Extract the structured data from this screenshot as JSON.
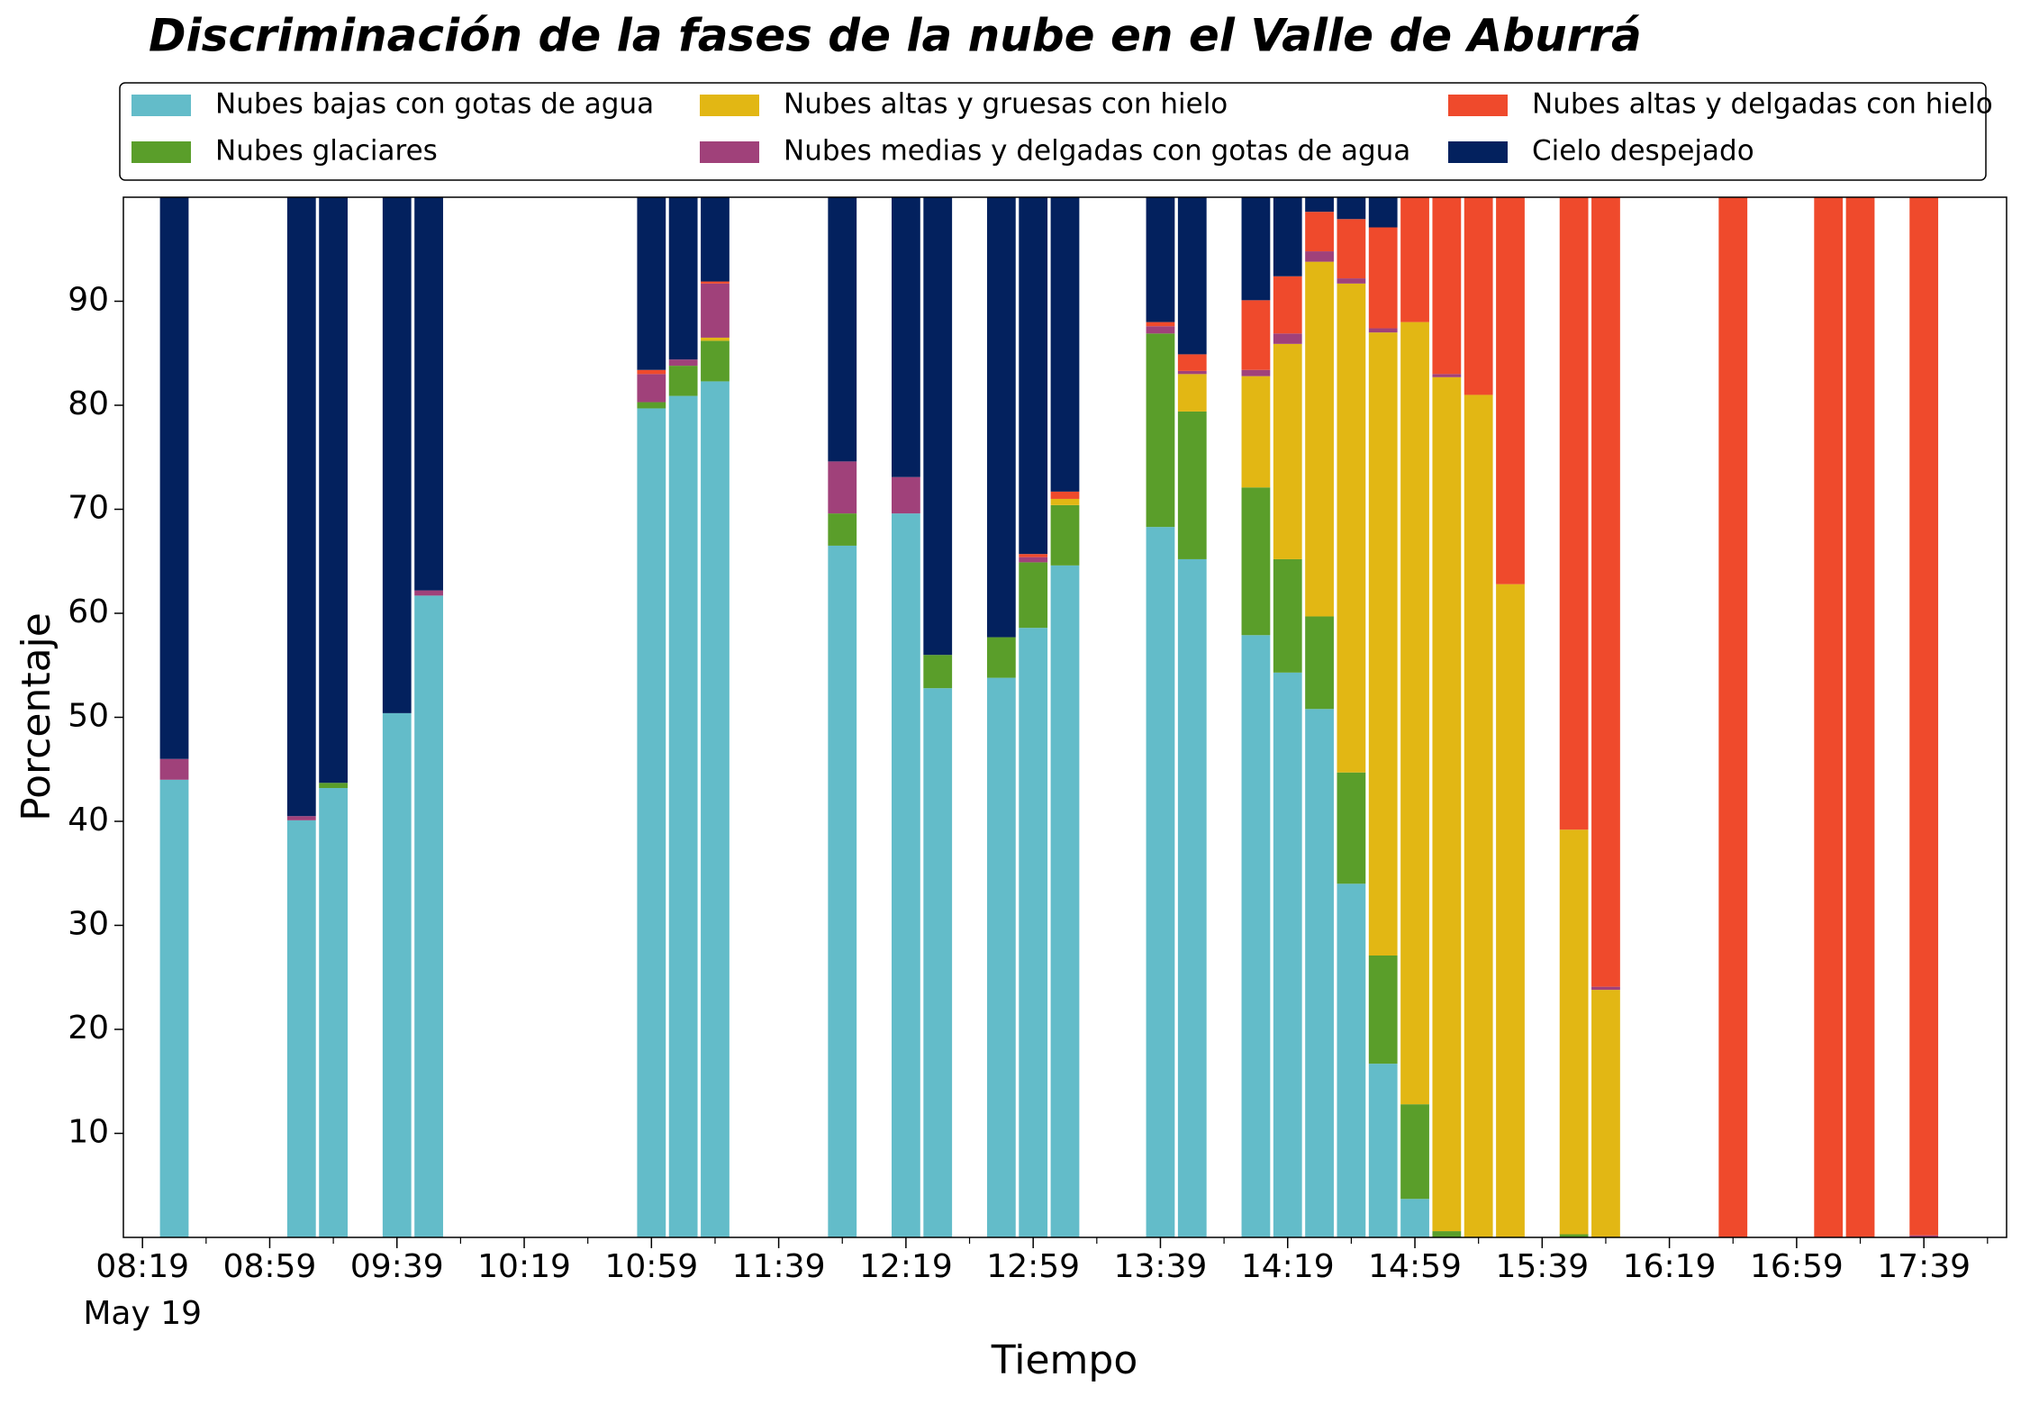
{
  "chart_data": {
    "type": "stacked_bar",
    "title": "Discriminación de la fases de la nube en el Valle de Aburrá",
    "xlabel": "Tiempo",
    "ylabel": "Porcentaje",
    "x_date": "May 19",
    "x": [
      "08:29",
      "09:09",
      "09:19",
      "09:39",
      "09:49",
      "10:59",
      "11:09",
      "11:19",
      "11:59",
      "12:19",
      "12:29",
      "12:49",
      "12:59",
      "13:09",
      "13:39",
      "13:49",
      "14:09",
      "14:19",
      "14:29",
      "14:39",
      "14:49",
      "14:59",
      "15:09",
      "15:19",
      "15:29",
      "15:49",
      "15:59",
      "16:39",
      "17:09",
      "17:19",
      "17:39"
    ],
    "xlim": [
      "08:13",
      "18:05"
    ],
    "xticks": [
      "08:19",
      "08:59",
      "09:39",
      "10:19",
      "10:59",
      "11:39",
      "12:19",
      "12:59",
      "13:39",
      "14:19",
      "14:59",
      "15:39",
      "16:19",
      "16:59",
      "17:39"
    ],
    "ylim": [
      0,
      100
    ],
    "yticks": [
      10,
      20,
      30,
      40,
      50,
      60,
      70,
      80,
      90
    ],
    "legend": "top",
    "series": [
      {
        "name": "Nubes bajas con gotas de agua",
        "color": "#63bcc9",
        "values": [
          44.0,
          40.1,
          43.2,
          50.4,
          61.7,
          79.7,
          80.9,
          82.3,
          66.5,
          69.6,
          52.8,
          53.8,
          58.6,
          64.6,
          68.3,
          65.2,
          57.9,
          54.3,
          50.8,
          34.0,
          16.7,
          3.7,
          0,
          0,
          0,
          0,
          0,
          0,
          0,
          0,
          0
        ]
      },
      {
        "name": "Nubes glaciares",
        "color": "#5a9e2a",
        "values": [
          0,
          0,
          0.5,
          0,
          0,
          0.6,
          2.9,
          3.9,
          3.1,
          0,
          3.2,
          3.9,
          6.3,
          5.8,
          18.6,
          14.2,
          14.2,
          10.9,
          8.9,
          10.7,
          10.4,
          9.1,
          0.6,
          0,
          0,
          0.3,
          0,
          0,
          0,
          0,
          0
        ]
      },
      {
        "name": "Nubes altas y gruesas con hielo",
        "color": "#e2b714",
        "values": [
          0,
          0,
          0,
          0,
          0,
          0,
          0,
          0.3,
          0,
          0,
          0,
          0,
          0,
          0.6,
          0,
          3.6,
          10.7,
          20.7,
          34.1,
          47.0,
          59.9,
          75.2,
          82.1,
          81.0,
          62.8,
          38.9,
          23.8,
          0,
          0,
          0,
          0
        ]
      },
      {
        "name": "Nubes medias y delgadas con gotas de agua",
        "color": "#a0417a",
        "values": [
          2.0,
          0.4,
          0,
          0,
          0.5,
          2.7,
          0.6,
          5.2,
          5.0,
          3.5,
          0,
          0,
          0.5,
          0,
          0.7,
          0.3,
          0.6,
          1.0,
          1.0,
          0.5,
          0.4,
          0,
          0.3,
          0,
          0,
          0,
          0.3,
          0,
          0,
          0,
          0.2
        ]
      },
      {
        "name": "Nubes altas y delgadas con hielo",
        "color": "#ef4a2c",
        "values": [
          0,
          0,
          0,
          0,
          0,
          0.4,
          0,
          0.2,
          0,
          0,
          0,
          0,
          0.3,
          0.7,
          0.4,
          1.6,
          6.7,
          5.5,
          3.8,
          5.7,
          9.7,
          12.0,
          17.0,
          19.0,
          37.2,
          60.8,
          75.9,
          100,
          100,
          100,
          99.8
        ]
      },
      {
        "name": "Cielo despejado",
        "color": "#03215e",
        "values": [
          54.0,
          59.5,
          56.3,
          49.6,
          37.8,
          16.6,
          15.6,
          8.1,
          25.4,
          26.9,
          44.0,
          42.3,
          34.3,
          28.3,
          12.0,
          15.1,
          9.9,
          7.6,
          1.4,
          2.1,
          2.9,
          0,
          0,
          0,
          0,
          0,
          0,
          0,
          0,
          0,
          0
        ]
      }
    ]
  }
}
